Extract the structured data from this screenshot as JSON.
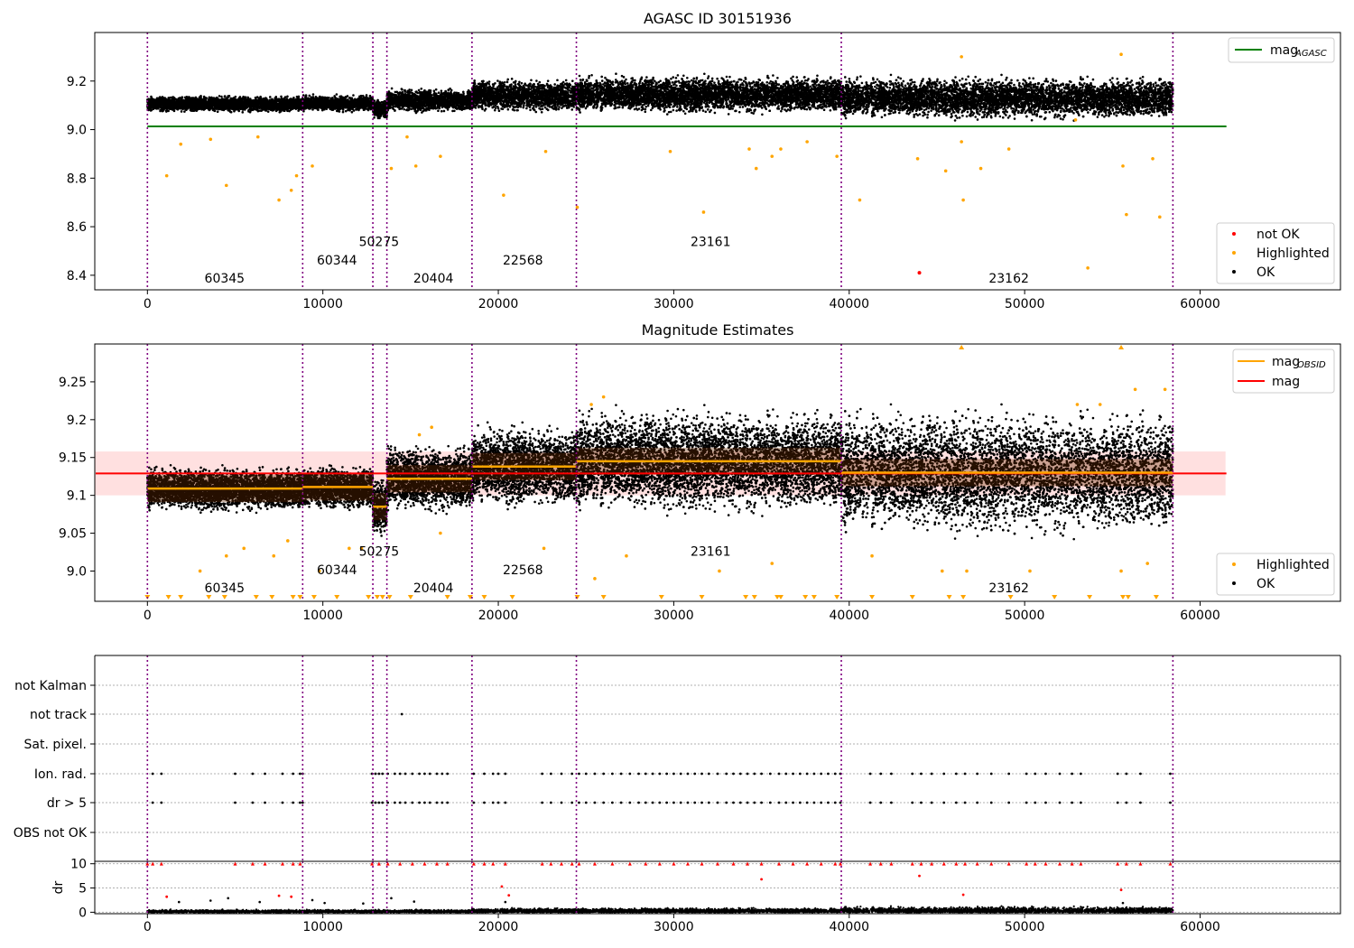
{
  "chart_data": [
    {
      "type": "scatter",
      "title": "AGASC ID 30151936",
      "xlim": [
        -3000,
        68000
      ],
      "ylim": [
        8.34,
        9.4
      ],
      "xticks": [
        0,
        10000,
        20000,
        30000,
        40000,
        50000,
        60000
      ],
      "yticks": [
        8.4,
        8.6,
        8.8,
        9.0,
        9.2
      ],
      "obsid_boundaries": [
        0,
        8850,
        12850,
        13650,
        18500,
        24450,
        39550,
        58450
      ],
      "obsid_labels": [
        {
          "text": "60345",
          "x": 4400,
          "y": 8.37
        },
        {
          "text": "60344",
          "x": 10800,
          "y": 8.445
        },
        {
          "text": "50275",
          "x": 13200,
          "y": 8.52
        },
        {
          "text": "20404",
          "x": 16300,
          "y": 8.37
        },
        {
          "text": "22568",
          "x": 21400,
          "y": 8.445
        },
        {
          "text": "23161",
          "x": 32100,
          "y": 8.52
        },
        {
          "text": "23162",
          "x": 49100,
          "y": 8.37
        }
      ],
      "reference_line": {
        "name": "mag_AGASC",
        "value": 9.013,
        "x_range": [
          0,
          61500
        ],
        "color": "#008000"
      },
      "not_ok_points": [
        {
          "x": 44000,
          "y": 8.41
        }
      ],
      "highlighted_outliers": [
        {
          "x": 1100,
          "y": 8.81
        },
        {
          "x": 4500,
          "y": 8.77
        },
        {
          "x": 7500,
          "y": 8.71
        },
        {
          "x": 8200,
          "y": 8.75
        },
        {
          "x": 8500,
          "y": 8.81
        },
        {
          "x": 9400,
          "y": 8.85
        },
        {
          "x": 1900,
          "y": 8.94
        },
        {
          "x": 3600,
          "y": 8.96
        },
        {
          "x": 6300,
          "y": 8.97
        },
        {
          "x": 13900,
          "y": 8.84
        },
        {
          "x": 14800,
          "y": 8.97
        },
        {
          "x": 15300,
          "y": 8.85
        },
        {
          "x": 16700,
          "y": 8.89
        },
        {
          "x": 20300,
          "y": 8.73
        },
        {
          "x": 22700,
          "y": 8.91
        },
        {
          "x": 24500,
          "y": 8.68
        },
        {
          "x": 29800,
          "y": 8.91
        },
        {
          "x": 31700,
          "y": 8.66
        },
        {
          "x": 34300,
          "y": 8.92
        },
        {
          "x": 34700,
          "y": 8.84
        },
        {
          "x": 35600,
          "y": 8.89
        },
        {
          "x": 36100,
          "y": 8.92
        },
        {
          "x": 37600,
          "y": 8.95
        },
        {
          "x": 39300,
          "y": 8.89
        },
        {
          "x": 40600,
          "y": 8.71
        },
        {
          "x": 43900,
          "y": 8.88
        },
        {
          "x": 45500,
          "y": 8.83
        },
        {
          "x": 46400,
          "y": 8.95
        },
        {
          "x": 46500,
          "y": 8.71
        },
        {
          "x": 47500,
          "y": 8.84
        },
        {
          "x": 49100,
          "y": 8.92
        },
        {
          "x": 53600,
          "y": 8.43
        },
        {
          "x": 55600,
          "y": 8.85
        },
        {
          "x": 55800,
          "y": 8.65
        },
        {
          "x": 57300,
          "y": 8.88
        },
        {
          "x": 57700,
          "y": 8.64
        },
        {
          "x": 46400,
          "y": 9.3
        },
        {
          "x": 55500,
          "y": 9.31
        },
        {
          "x": 52900,
          "y": 9.04
        }
      ],
      "ok_band": [
        {
          "x0": 0,
          "x1": 8850,
          "center": 9.105,
          "spread": 0.035
        },
        {
          "x0": 8850,
          "x1": 12850,
          "center": 9.108,
          "spread": 0.035
        },
        {
          "x0": 12850,
          "x1": 13650,
          "center": 9.085,
          "spread": 0.045
        },
        {
          "x0": 13650,
          "x1": 18500,
          "center": 9.12,
          "spread": 0.05
        },
        {
          "x0": 18500,
          "x1": 24450,
          "center": 9.14,
          "spread": 0.07
        },
        {
          "x0": 24450,
          "x1": 39550,
          "center": 9.145,
          "spread": 0.08
        },
        {
          "x0": 39550,
          "x1": 58450,
          "center": 9.13,
          "spread": 0.09
        }
      ],
      "legend_top": [
        {
          "label": "mag",
          "sub": "AGASC",
          "color": "#008000",
          "kind": "line"
        }
      ],
      "legend_bottom": [
        {
          "label": "not OK",
          "color": "#ff0000",
          "kind": "point"
        },
        {
          "label": "Highlighted",
          "color": "#ffa500",
          "kind": "point"
        },
        {
          "label": "OK",
          "color": "#000000",
          "kind": "point"
        }
      ]
    },
    {
      "type": "scatter",
      "title": "Magnitude Estimates",
      "xlim": [
        -3000,
        68000
      ],
      "ylim": [
        8.96,
        9.3
      ],
      "xticks": [
        0,
        10000,
        20000,
        30000,
        40000,
        50000,
        60000
      ],
      "yticks": [
        9.0,
        9.05,
        9.1,
        9.15,
        9.2,
        9.25
      ],
      "obsid_boundaries": [
        0,
        8850,
        12850,
        13650,
        18500,
        24450,
        39550,
        58450
      ],
      "obsid_labels": [
        {
          "text": "60345",
          "x": 4400,
          "y": 8.972
        },
        {
          "text": "60344",
          "x": 10800,
          "y": 8.996
        },
        {
          "text": "50275",
          "x": 13200,
          "y": 9.02
        },
        {
          "text": "20404",
          "x": 16300,
          "y": 8.972
        },
        {
          "text": "22568",
          "x": 21400,
          "y": 8.996
        },
        {
          "text": "23161",
          "x": 32100,
          "y": 9.02
        },
        {
          "text": "23162",
          "x": 49100,
          "y": 8.972
        }
      ],
      "mag_line": {
        "name": "mag",
        "value": 9.129,
        "band": [
          9.1,
          9.158
        ],
        "x_range": [
          -3000,
          61500
        ],
        "color": "#ff0000"
      },
      "mag_obsid": [
        {
          "x0": 0,
          "x1": 8850,
          "value": 9.109
        },
        {
          "x0": 8850,
          "x1": 12850,
          "value": 9.111
        },
        {
          "x0": 12850,
          "x1": 13650,
          "value": 9.085
        },
        {
          "x0": 13650,
          "x1": 18500,
          "value": 9.122
        },
        {
          "x0": 18500,
          "x1": 24450,
          "value": 9.138
        },
        {
          "x0": 24450,
          "x1": 39550,
          "value": 9.145
        },
        {
          "x0": 39550,
          "x1": 58450,
          "value": 9.13
        }
      ],
      "ok_band": [
        {
          "x0": 0,
          "x1": 8850,
          "center": 9.108,
          "spread": 0.03
        },
        {
          "x0": 8850,
          "x1": 12850,
          "center": 9.11,
          "spread": 0.03
        },
        {
          "x0": 12850,
          "x1": 13650,
          "center": 9.085,
          "spread": 0.04
        },
        {
          "x0": 13650,
          "x1": 18500,
          "center": 9.122,
          "spread": 0.045
        },
        {
          "x0": 18500,
          "x1": 24450,
          "center": 9.138,
          "spread": 0.055
        },
        {
          "x0": 24450,
          "x1": 39550,
          "center": 9.145,
          "spread": 0.07
        },
        {
          "x0": 39550,
          "x1": 58450,
          "center": 9.13,
          "spread": 0.085
        }
      ],
      "highlighted_outliers": [
        {
          "x": 3000,
          "y": 9.0
        },
        {
          "x": 4500,
          "y": 9.02
        },
        {
          "x": 5500,
          "y": 9.03
        },
        {
          "x": 7200,
          "y": 9.02
        },
        {
          "x": 8000,
          "y": 9.04
        },
        {
          "x": 9800,
          "y": 9.0
        },
        {
          "x": 11500,
          "y": 9.03
        },
        {
          "x": 12200,
          "y": 9.03
        },
        {
          "x": 16700,
          "y": 9.05
        },
        {
          "x": 22600,
          "y": 9.03
        },
        {
          "x": 25500,
          "y": 8.99
        },
        {
          "x": 27300,
          "y": 9.02
        },
        {
          "x": 32600,
          "y": 9.0
        },
        {
          "x": 35600,
          "y": 9.01
        },
        {
          "x": 41300,
          "y": 9.02
        },
        {
          "x": 45300,
          "y": 9.0
        },
        {
          "x": 46700,
          "y": 9.0
        },
        {
          "x": 50300,
          "y": 9.0
        },
        {
          "x": 55500,
          "y": 9.0
        },
        {
          "x": 57000,
          "y": 9.01
        },
        {
          "x": 15500,
          "y": 9.18
        },
        {
          "x": 16200,
          "y": 9.19
        },
        {
          "x": 25300,
          "y": 9.22
        },
        {
          "x": 26000,
          "y": 9.23
        },
        {
          "x": 53000,
          "y": 9.22
        },
        {
          "x": 54300,
          "y": 9.22
        },
        {
          "x": 56300,
          "y": 9.24
        },
        {
          "x": 58000,
          "y": 9.24
        }
      ],
      "clipped_low_x": [
        0,
        1200,
        1900,
        3500,
        4400,
        6200,
        7100,
        8300,
        8700,
        9500,
        10800,
        12600,
        13100,
        13400,
        13800,
        15000,
        17100,
        18400,
        19200,
        20800,
        24500,
        26000,
        29300,
        31600,
        34100,
        34600,
        35900,
        36100,
        37500,
        38000,
        39300,
        41300,
        43600,
        45700,
        46500,
        49200,
        51700,
        53700,
        55600,
        55900,
        57500
      ],
      "clipped_high_x": [
        46400,
        55500
      ],
      "legend_top": [
        {
          "label": "mag",
          "sub": "OBSID",
          "color": "#ffa500",
          "kind": "line"
        },
        {
          "label": "mag",
          "sub": "",
          "color": "#ff0000",
          "kind": "line"
        }
      ],
      "legend_bottom": [
        {
          "label": "Highlighted",
          "color": "#ffa500",
          "kind": "point"
        },
        {
          "label": "OK",
          "color": "#000000",
          "kind": "point"
        }
      ]
    },
    {
      "type": "scatter",
      "title": "",
      "xlim": [
        -3000,
        68000
      ],
      "xticks": [
        0,
        10000,
        20000,
        30000,
        40000,
        50000,
        60000
      ],
      "flag_rows": [
        "not Kalman",
        "not track",
        "Sat. pixel.",
        "Ion. rad.",
        "dr > 5",
        "OBS not OK"
      ],
      "flag_points": {
        "not track": [
          14500
        ],
        "Ion. rad.": [
          300,
          800,
          5000,
          6000,
          6700,
          7700,
          8300,
          8700,
          8850,
          12800,
          13000,
          13200,
          13400,
          13700,
          14100,
          14400,
          14700,
          15100,
          15500,
          15800,
          16100,
          16500,
          16800,
          17100,
          18600,
          19200,
          19700,
          20000,
          20400,
          22500,
          23000,
          23600,
          24200,
          24600,
          25000,
          25500,
          26000,
          26500,
          27000,
          27500,
          28000,
          28400,
          28800,
          29200,
          29600,
          30000,
          30400,
          30800,
          31200,
          31600,
          32000,
          32500,
          33000,
          33400,
          33800,
          34200,
          34600,
          35000,
          35500,
          36000,
          36400,
          36800,
          37200,
          37600,
          38000,
          38400,
          38800,
          39200,
          39500,
          41200,
          41800,
          42400,
          43600,
          44100,
          44700,
          45400,
          46100,
          46600,
          47300,
          48100,
          49100,
          50100,
          50600,
          51200,
          52000,
          52700,
          53200,
          55300,
          55800,
          56600,
          58300
        ],
        "dr > 5": [
          300,
          800,
          5000,
          6000,
          6700,
          7700,
          8300,
          8700,
          8850,
          12800,
          13000,
          13200,
          13400,
          13700,
          14100,
          14400,
          14700,
          15100,
          15500,
          15800,
          16100,
          16500,
          16800,
          17100,
          18600,
          19200,
          19700,
          20000,
          20400,
          22500,
          23000,
          23600,
          24200,
          24600,
          25000,
          25500,
          26000,
          26500,
          27000,
          27500,
          28000,
          28400,
          28800,
          29200,
          29600,
          30000,
          30400,
          30800,
          31200,
          31600,
          32000,
          32500,
          33000,
          33400,
          33800,
          34200,
          34600,
          35000,
          35500,
          36000,
          36400,
          36800,
          37200,
          37600,
          38000,
          38400,
          38800,
          39200,
          39500,
          41200,
          41800,
          42400,
          43600,
          44100,
          44700,
          45400,
          46100,
          46600,
          47300,
          48100,
          49100,
          50100,
          50600,
          51200,
          52000,
          52700,
          53200,
          55300,
          55800,
          56600,
          58300
        ]
      },
      "obsid_boundaries": [
        0,
        8850,
        12850,
        13650,
        18500,
        24450,
        39550,
        58450
      ]
    },
    {
      "type": "scatter",
      "title": "",
      "ylabel": "dr",
      "xlim": [
        -3000,
        68000
      ],
      "ylim": [
        -0.3,
        10.5
      ],
      "xticks": [
        0,
        10000,
        20000,
        30000,
        40000,
        50000,
        60000
      ],
      "xtick_labels": [
        "0",
        "10000",
        "20000",
        "30000",
        "40000",
        "50000",
        "60000"
      ],
      "yticks": [
        0,
        5,
        10
      ],
      "red_points": [
        {
          "x": 1100,
          "y": 3.2
        },
        {
          "x": 7500,
          "y": 3.4
        },
        {
          "x": 8200,
          "y": 3.2
        },
        {
          "x": 20200,
          "y": 5.3
        },
        {
          "x": 20600,
          "y": 3.5
        },
        {
          "x": 35000,
          "y": 6.8
        },
        {
          "x": 44000,
          "y": 7.5
        },
        {
          "x": 46500,
          "y": 3.6
        },
        {
          "x": 55500,
          "y": 4.6
        }
      ],
      "red_clipped_x": [
        0,
        300,
        800,
        5000,
        6000,
        6700,
        7700,
        8300,
        8700,
        12800,
        13200,
        13700,
        14400,
        15100,
        15800,
        16500,
        17100,
        18600,
        19200,
        19700,
        20400,
        22500,
        23000,
        23600,
        24200,
        24600,
        25500,
        26500,
        27500,
        28400,
        29200,
        30000,
        30800,
        31600,
        32500,
        33400,
        34200,
        35000,
        36000,
        36800,
        37600,
        38400,
        39200,
        39500,
        41200,
        41800,
        42400,
        43600,
        44100,
        44700,
        45400,
        46100,
        46600,
        47300,
        48100,
        49100,
        50100,
        50600,
        51200,
        52000,
        52700,
        53200,
        55300,
        55800,
        56600,
        58300
      ],
      "black_outliers": [
        {
          "x": 1800,
          "y": 2.1
        },
        {
          "x": 3600,
          "y": 2.4
        },
        {
          "x": 4600,
          "y": 2.9
        },
        {
          "x": 6400,
          "y": 2.1
        },
        {
          "x": 9400,
          "y": 2.5
        },
        {
          "x": 10100,
          "y": 1.9
        },
        {
          "x": 12300,
          "y": 1.8
        },
        {
          "x": 13900,
          "y": 2.9
        },
        {
          "x": 15200,
          "y": 2.2
        },
        {
          "x": 20400,
          "y": 2.1
        },
        {
          "x": 55600,
          "y": 1.9
        }
      ],
      "obsid_boundaries": [
        0,
        8850,
        12850,
        13650,
        18500,
        24450,
        39550,
        58450
      ]
    }
  ]
}
